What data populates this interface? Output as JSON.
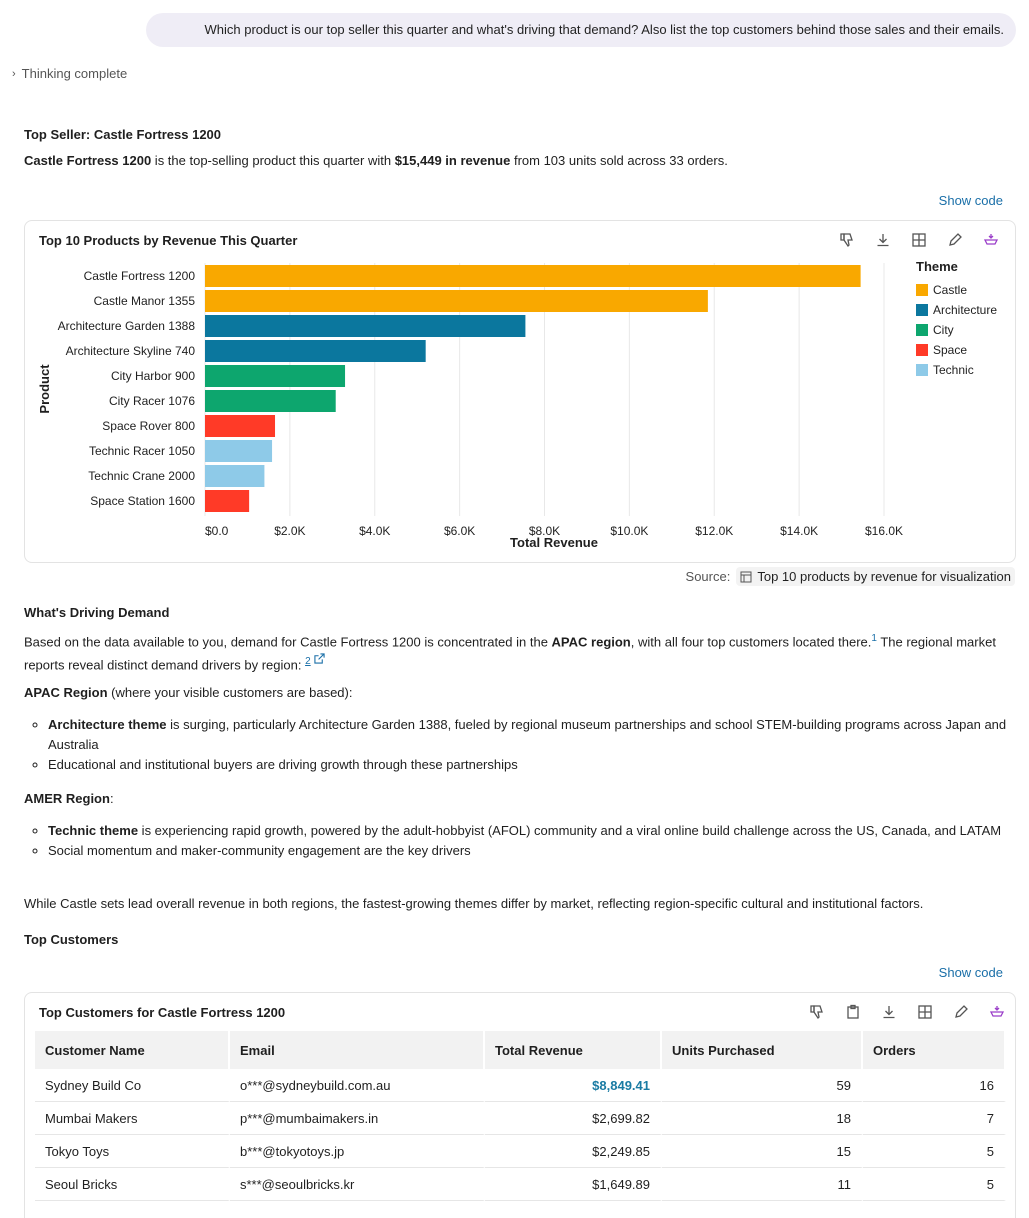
{
  "user_message": "Which product is our top seller this quarter and what's driving that demand? Also list the top customers behind those sales and their emails.",
  "thinking_label": "Thinking complete",
  "top_seller": {
    "heading": "Top Seller: Castle Fortress 1200",
    "p_bold1": "Castle Fortress 1200",
    "p_mid": " is the top-selling product this quarter with ",
    "p_bold2": "$15,449 in revenue",
    "p_end": " from 103 units sold across 33 orders."
  },
  "show_code_label": "Show code",
  "chart_card": {
    "title": "Top 10 Products by Revenue This Quarter",
    "source_label": "Source:",
    "source_value": "Top 10 products by revenue for visualization"
  },
  "chart_data": {
    "type": "bar",
    "orientation": "horizontal",
    "title": "Top 10 Products by Revenue This Quarter",
    "xlabel": "Total Revenue",
    "ylabel": "Product",
    "xlim": [
      0,
      16000
    ],
    "xticks": [
      "$0.0",
      "$2.0K",
      "$4.0K",
      "$6.0K",
      "$8.0K",
      "$10.0K",
      "$12.0K",
      "$14.0K",
      "$16.0K"
    ],
    "grid": true,
    "legend_title": "Theme",
    "legend_position": "right",
    "themes": [
      {
        "name": "Castle",
        "color": "#F9A800"
      },
      {
        "name": "Architecture",
        "color": "#0B779E"
      },
      {
        "name": "City",
        "color": "#0DA66E"
      },
      {
        "name": "Space",
        "color": "#FF3A27"
      },
      {
        "name": "Technic",
        "color": "#8ECAE8"
      }
    ],
    "categories": [
      "Castle Fortress 1200",
      "Castle Manor 1355",
      "Architecture Garden 1388",
      "Architecture Skyline 740",
      "City Harbor 900",
      "City Racer 1076",
      "Space Rover 800",
      "Technic Racer 1050",
      "Technic Crane 2000",
      "Space Station 1600"
    ],
    "values": [
      15449,
      11850,
      7550,
      5200,
      3300,
      3080,
      1650,
      1580,
      1400,
      1040
    ],
    "theme_of": [
      "Castle",
      "Castle",
      "Architecture",
      "Architecture",
      "City",
      "City",
      "Space",
      "Technic",
      "Technic",
      "Space"
    ]
  },
  "demand": {
    "heading": "What's Driving Demand",
    "p1_a": "Based on the data available to you, demand for Castle Fortress 1200 is concentrated in the ",
    "p1_bold": "APAC region",
    "p1_b": ", with all four top customers located there.",
    "cite1": "1",
    "p1_c": " The regional market reports reveal distinct demand drivers by region: ",
    "cite2": "2",
    "apac_bold": "APAC Region",
    "apac_rest": " (where your visible customers are based):",
    "apac_b1_bold": "Architecture theme",
    "apac_b1_rest": " is surging, particularly Architecture Garden 1388, fueled by regional museum partnerships and school STEM-building programs across Japan and Australia",
    "apac_b2": "Educational and institutional buyers are driving growth through these partnerships",
    "amer_bold": "AMER Region",
    "amer_rest": ":",
    "amer_b1_bold": "Technic theme",
    "amer_b1_rest": " is experiencing rapid growth, powered by the adult-hobbyist (AFOL) community and a viral online build challenge across the US, Canada, and LATAM",
    "amer_b2": "Social momentum and maker-community engagement are the key drivers",
    "conclusion": "While Castle sets lead overall revenue in both regions, the fastest-growing themes differ by market, reflecting region-specific cultural and institutional factors."
  },
  "customers": {
    "heading": "Top Customers",
    "card_title": "Top Customers for Castle Fortress 1200",
    "columns": [
      "Customer Name",
      "Email",
      "Total Revenue",
      "Units Purchased",
      "Orders"
    ],
    "rows": [
      [
        "Sydney Build Co",
        "o***@sydneybuild.com.au",
        "$8,849.41",
        "59",
        "16"
      ],
      [
        "Mumbai Makers",
        "p***@mumbaimakers.in",
        "$2,699.82",
        "18",
        "7"
      ],
      [
        "Tokyo Toys",
        "b***@tokyotoys.jp",
        "$2,249.85",
        "15",
        "5"
      ],
      [
        "Seoul Bricks",
        "s***@seoulbricks.kr",
        "$1,649.89",
        "11",
        "5"
      ]
    ]
  },
  "colors": {
    "link": "#1a6fa8",
    "highlight_value": "#1a7ba3",
    "user_bubble": "#efedf6"
  }
}
